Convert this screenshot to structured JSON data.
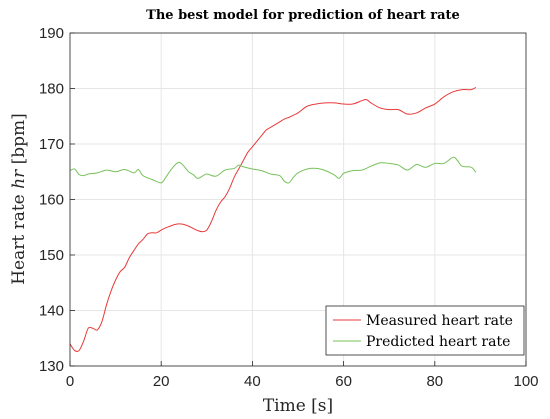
{
  "chart_data": {
    "type": "line",
    "title": "The best model for prediction of heart rate",
    "xlabel": "Time [s]",
    "ylabel": "Heart rate hr [bpm]",
    "xlim": [
      0,
      100
    ],
    "ylim": [
      130,
      190
    ],
    "xticks": [
      0,
      20,
      40,
      60,
      80,
      100
    ],
    "yticks": [
      130,
      140,
      150,
      160,
      170,
      180,
      190
    ],
    "grid": true,
    "legend_position": "bottom-right",
    "series": [
      {
        "name": "Measured heart rate",
        "color": "#e8393a",
        "x": [
          0,
          1,
          2,
          3,
          4,
          5,
          6,
          7,
          8,
          9,
          10,
          11,
          12,
          13,
          14,
          15,
          16,
          17,
          18,
          19,
          20,
          21,
          22,
          23,
          24,
          25,
          26,
          27,
          28,
          29,
          30,
          31,
          32,
          33,
          34,
          35,
          36,
          37,
          38,
          39,
          40,
          41,
          42,
          43,
          44,
          45,
          46,
          47,
          48,
          49,
          50,
          52,
          54,
          56,
          58,
          60,
          62,
          64,
          65,
          66,
          68,
          70,
          72,
          74,
          76,
          78,
          80,
          82,
          84,
          86,
          88,
          89
        ],
        "y": [
          134,
          132.8,
          132.8,
          134.5,
          136.8,
          136.8,
          136.5,
          138,
          141,
          143.5,
          145.5,
          147,
          147.8,
          149.5,
          150.8,
          152,
          152.8,
          153.8,
          154,
          154,
          154.5,
          154.9,
          155.2,
          155.5,
          155.6,
          155.5,
          155.2,
          154.8,
          154.4,
          154.2,
          154.5,
          156,
          158,
          159.5,
          160.5,
          162,
          164,
          165.5,
          167,
          168.5,
          169.5,
          170.5,
          171.5,
          172.5,
          173,
          173.5,
          174,
          174.5,
          174.8,
          175.2,
          175.6,
          176.8,
          177.2,
          177.4,
          177.4,
          177.2,
          177.2,
          177.8,
          178,
          177.4,
          176.5,
          176.2,
          176.2,
          175.4,
          175.6,
          176.5,
          177.2,
          178.5,
          179.4,
          179.8,
          179.8,
          180.2
        ]
      },
      {
        "name": "Predicted heart rate",
        "color": "#77c25a",
        "x": [
          0,
          1,
          2,
          3,
          4,
          6,
          8,
          10,
          12,
          14,
          15,
          16,
          18,
          20,
          21,
          22,
          23,
          24,
          25,
          26,
          27,
          28,
          29,
          30,
          32,
          34,
          36,
          37,
          38,
          40,
          42,
          44,
          46,
          47,
          48,
          49,
          50,
          52,
          54,
          56,
          58,
          59,
          60,
          62,
          64,
          66,
          68,
          70,
          72,
          74,
          76,
          78,
          80,
          82,
          84,
          85,
          86,
          88,
          89
        ],
        "y": [
          165.2,
          165.5,
          164.5,
          164.3,
          164.6,
          164.8,
          165.3,
          165,
          165.4,
          164.8,
          165.4,
          164.3,
          163.6,
          163,
          164,
          165.2,
          166.2,
          166.7,
          166,
          165,
          164.5,
          163.8,
          164.2,
          164.6,
          164.2,
          165.3,
          165.6,
          166.2,
          165.9,
          165.5,
          165.2,
          164.6,
          164.3,
          163.3,
          163,
          164,
          164.8,
          165.5,
          165.6,
          165.2,
          164.4,
          163.8,
          164.7,
          165.2,
          165.3,
          166,
          166.6,
          166.5,
          166.2,
          165.3,
          166.3,
          165.8,
          166.5,
          166.5,
          167.6,
          167,
          166,
          165.8,
          164.9
        ]
      }
    ]
  }
}
